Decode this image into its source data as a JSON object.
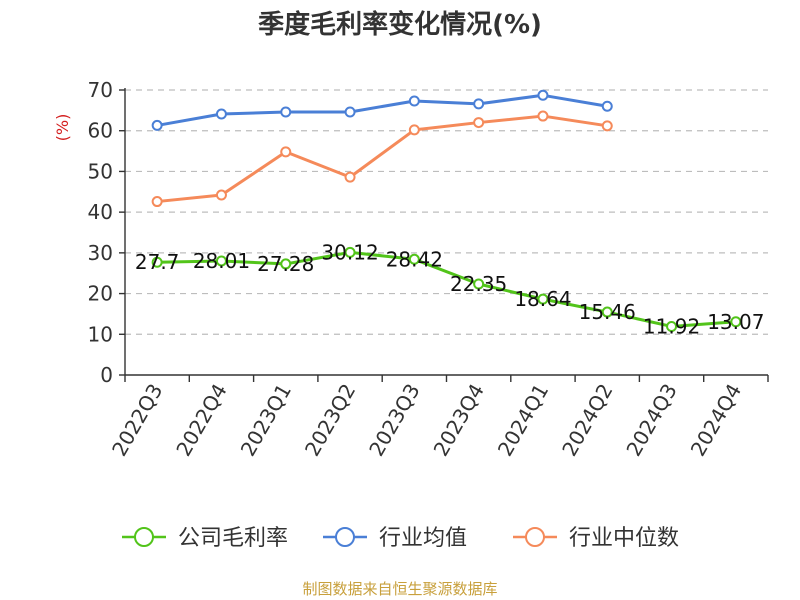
{
  "chart_data": {
    "type": "line",
    "title": "季度毛利率变化情况(%)",
    "ylabel": "(%)",
    "xlabel": "",
    "ylim": [
      0,
      70
    ],
    "yticks": [
      0,
      10,
      20,
      30,
      40,
      50,
      60,
      70
    ],
    "grid": true,
    "legend_position": "bottom",
    "categories": [
      "2022Q3",
      "2022Q4",
      "2023Q1",
      "2023Q2",
      "2023Q3",
      "2023Q4",
      "2024Q1",
      "2024Q2",
      "2024Q3",
      "2024Q4"
    ],
    "series": [
      {
        "name": "公司毛利率",
        "color": "#52c41a",
        "values": [
          27.7,
          28.01,
          27.28,
          30.12,
          28.42,
          22.35,
          18.64,
          15.46,
          11.92,
          13.07
        ],
        "labels": [
          "27.7",
          "28.01",
          "27.28",
          "30.12",
          "28.42",
          "22.35",
          "18.64",
          "15.46",
          "11.92",
          "13.07"
        ]
      },
      {
        "name": "行业均值",
        "color": "#4a7fd6",
        "values": [
          61.3,
          64.1,
          64.6,
          64.6,
          67.3,
          66.6,
          68.7,
          66.0,
          null,
          null
        ]
      },
      {
        "name": "行业中位数",
        "color": "#f58a5a",
        "values": [
          42.6,
          44.2,
          54.8,
          48.6,
          60.2,
          62.0,
          63.6,
          61.2,
          null,
          null
        ]
      }
    ]
  },
  "source": "制图数据来自恒生聚源数据库"
}
